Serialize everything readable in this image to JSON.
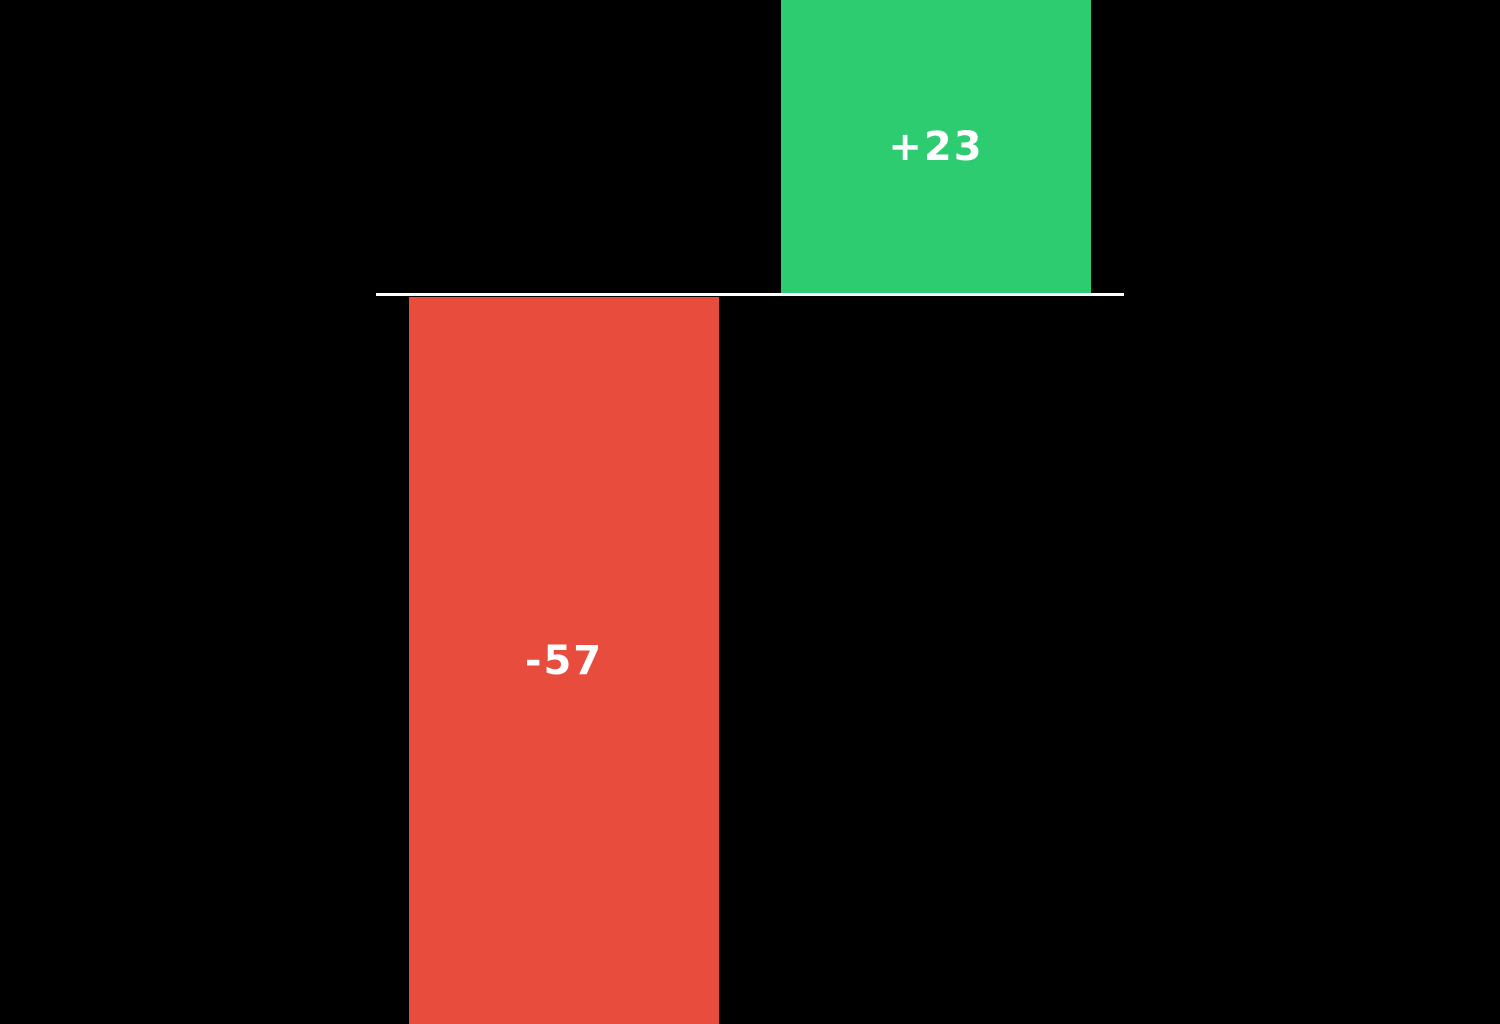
{
  "chart_data": {
    "type": "bar",
    "categories": [
      "",
      ""
    ],
    "values": [
      -57,
      23
    ],
    "bar_labels": [
      "-57",
      "+23"
    ],
    "bar_colors": [
      "#e74c3c",
      "#2ecc71"
    ],
    "label_color": "#ffffff",
    "title": "",
    "xlabel": "",
    "ylabel": "",
    "ylim": [
      -57,
      23
    ],
    "baseline_value": 0,
    "background_color": "#000000",
    "axis": {
      "zero_line_color": "#ffffff",
      "grid": false,
      "legend": false,
      "tick_labels_visible": false
    }
  }
}
